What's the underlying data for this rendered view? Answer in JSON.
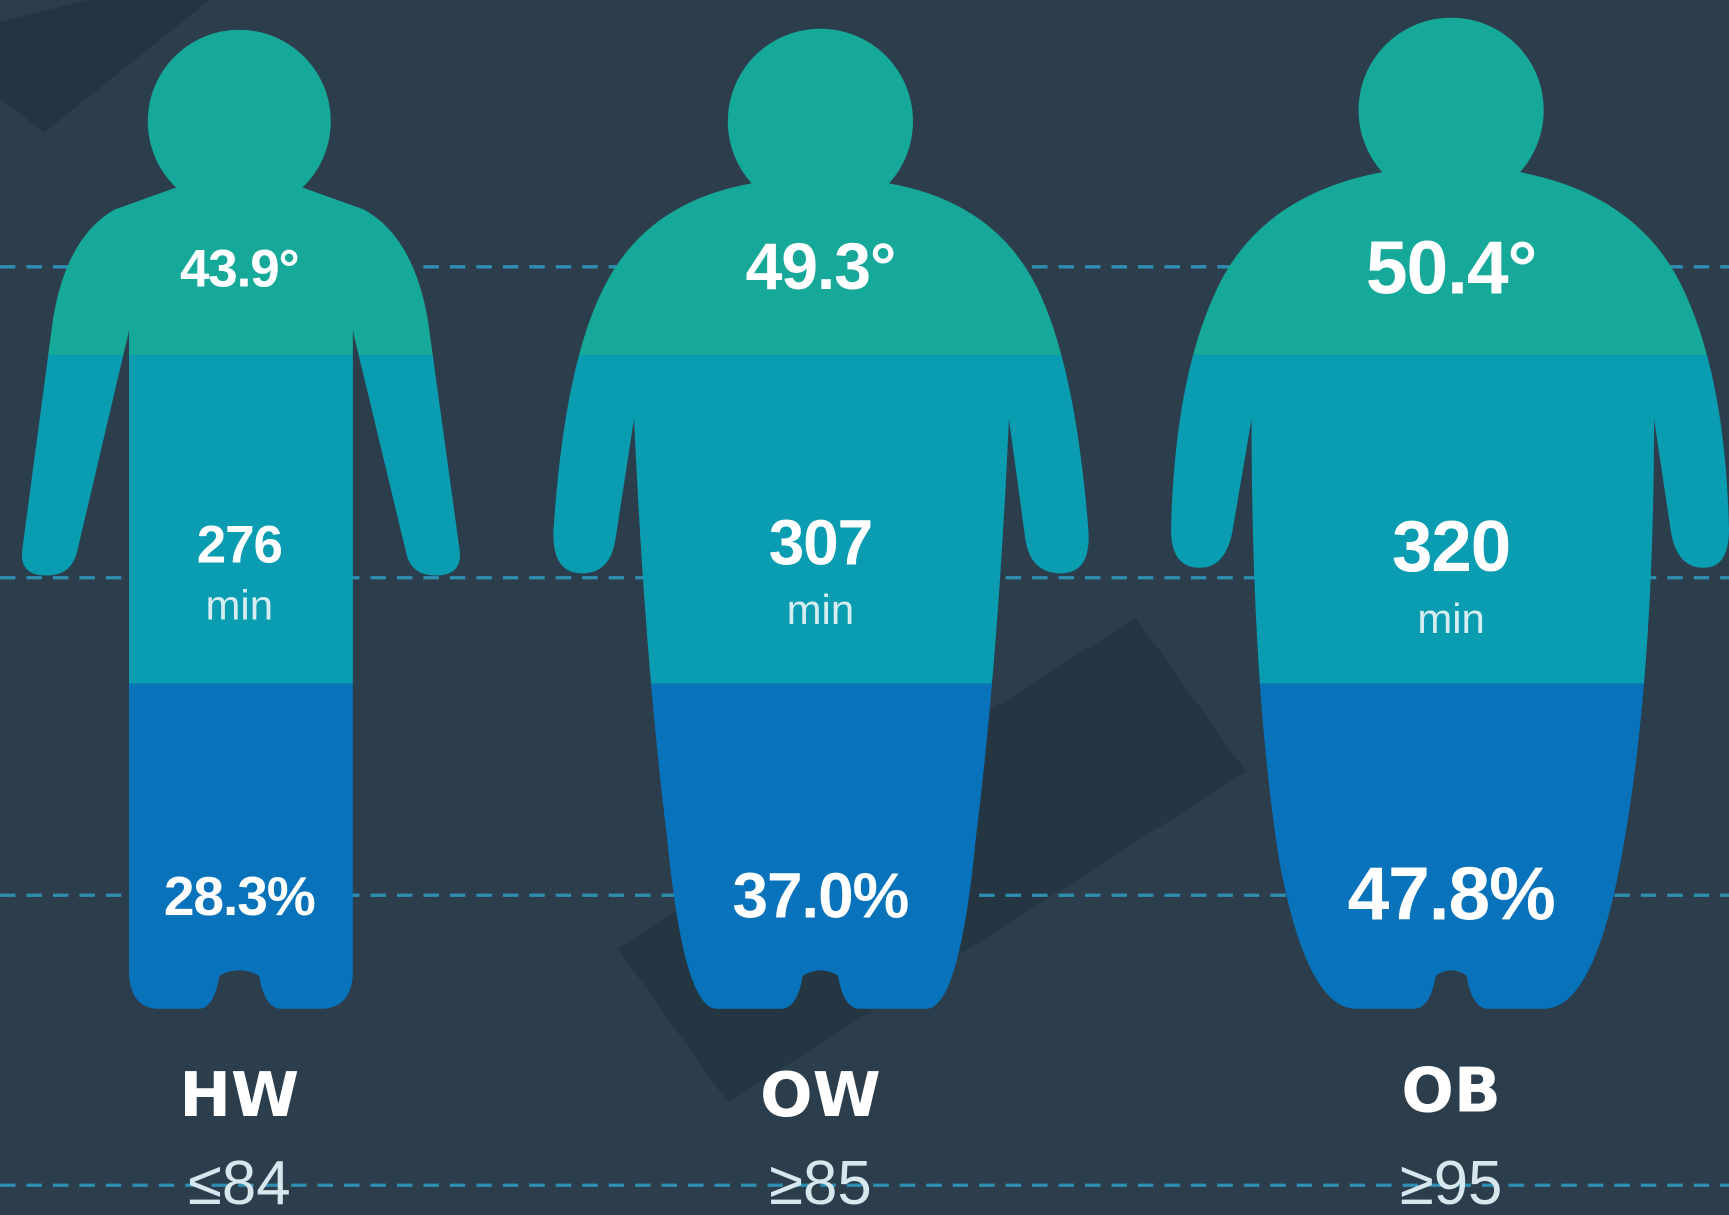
{
  "figures": [
    {
      "label": "HW",
      "threshold": "≤84",
      "angle": "43.9°",
      "minutes": "276",
      "minutes_unit": "min",
      "percent": "28.3%"
    },
    {
      "label": "OW",
      "threshold": "≥85",
      "angle": "49.3°",
      "minutes": "307",
      "minutes_unit": "min",
      "percent": "37.0%"
    },
    {
      "label": "OB",
      "threshold": "≥95",
      "angle": "50.4°",
      "minutes": "320",
      "minutes_unit": "min",
      "percent": "47.8%"
    }
  ]
}
